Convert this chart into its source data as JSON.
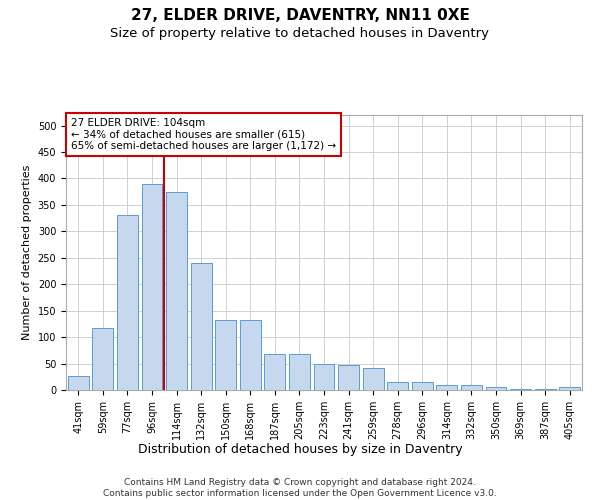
{
  "title": "27, ELDER DRIVE, DAVENTRY, NN11 0XE",
  "subtitle": "Size of property relative to detached houses in Daventry",
  "xlabel": "Distribution of detached houses by size in Daventry",
  "ylabel": "Number of detached properties",
  "categories": [
    "41sqm",
    "59sqm",
    "77sqm",
    "96sqm",
    "114sqm",
    "132sqm",
    "150sqm",
    "168sqm",
    "187sqm",
    "205sqm",
    "223sqm",
    "241sqm",
    "259sqm",
    "278sqm",
    "296sqm",
    "314sqm",
    "332sqm",
    "350sqm",
    "369sqm",
    "387sqm",
    "405sqm"
  ],
  "values": [
    27,
    118,
    330,
    390,
    375,
    240,
    132,
    132,
    68,
    68,
    50,
    48,
    42,
    15,
    15,
    10,
    10,
    5,
    2,
    2,
    6
  ],
  "bar_color": "#c5d8ed",
  "bar_edge_color": "#5b9bd5",
  "annotation_line1": "27 ELDER DRIVE: 104sqm",
  "annotation_line2": "← 34% of detached houses are smaller (615)",
  "annotation_line3": "65% of semi-detached houses are larger (1,172) →",
  "annotation_box_color": "#ffffff",
  "annotation_box_edge_color": "#cc0000",
  "vline_x": 3.5,
  "vline_color": "#cc0000",
  "ylim": [
    0,
    520
  ],
  "yticks": [
    0,
    50,
    100,
    150,
    200,
    250,
    300,
    350,
    400,
    450,
    500
  ],
  "grid_color": "#d0d0d0",
  "footer": "Contains HM Land Registry data © Crown copyright and database right 2024.\nContains public sector information licensed under the Open Government Licence v3.0.",
  "title_fontsize": 11,
  "subtitle_fontsize": 9.5,
  "ylabel_fontsize": 8,
  "xlabel_fontsize": 9,
  "tick_fontsize": 7,
  "annotation_fontsize": 7.5,
  "footer_fontsize": 6.5
}
